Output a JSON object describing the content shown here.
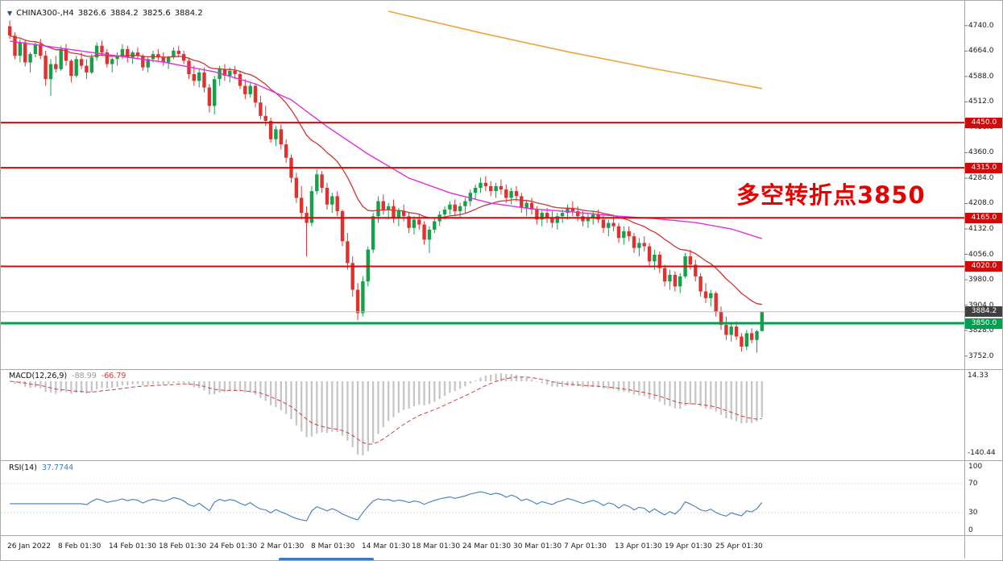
{
  "window": {
    "quote": {
      "arrow": "▼",
      "symbol": "CHINA300-,H4",
      "open": "3826.6",
      "high": "3884.2",
      "low": "3825.6",
      "close": "3884.2"
    },
    "annotation": "多空转折点3850"
  },
  "colors": {
    "up_candle": "#16a04a",
    "down_candle": "#e03131",
    "level_red": "#cf0a0a",
    "level_green": "#00a14e",
    "annotation_red": "#e80000",
    "ma_red": "#cf3434",
    "ma_magenta": "#df2fdf",
    "ma_orange": "#eea33c",
    "macd_histogram": "#c6c6c6",
    "macd_signal": "#d04040",
    "rsi_line": "#3f7cbf",
    "current_price_tag": "#404040",
    "scrollbar_blue": "#3f78c0"
  },
  "chart_data": {
    "type": "candlestick",
    "title": "CHINA300- H4 chart with MACD and RSI",
    "symbol": "CHINA300-",
    "timeframe": "H4",
    "x_labels": [
      "26 Jan 2022",
      "8 Feb 01:30",
      "14 Feb 01:30",
      "18 Feb 01:30",
      "24 Feb 01:30",
      "2 Mar 01:30",
      "8 Mar 01:30",
      "14 Mar 01:30",
      "18 Mar 01:30",
      "24 Mar 01:30",
      "30 Mar 01:30",
      "7 Apr 01:30",
      "13 Apr 01:30",
      "19 Apr 01:30",
      "25 Apr 01:30"
    ],
    "y_ticks": [
      "4740.0",
      "4664.0",
      "4588.0",
      "4512.0",
      "4436.0",
      "4360.0",
      "4284.0",
      "4208.0",
      "4132.0",
      "4056.0",
      "3980.0",
      "3904.0",
      "3828.0",
      "3752.0"
    ],
    "price_range": {
      "min": 3715,
      "max": 4795
    },
    "candle_colors": {
      "up": "#16a04a",
      "down": "#e03131"
    },
    "candles": [
      [
        4738,
        4755,
        4700,
        4710
      ],
      [
        4710,
        4720,
        4640,
        4650
      ],
      [
        4650,
        4700,
        4630,
        4690
      ],
      [
        4690,
        4695,
        4618,
        4630
      ],
      [
        4630,
        4660,
        4600,
        4655
      ],
      [
        4655,
        4690,
        4645,
        4685
      ],
      [
        4685,
        4700,
        4640,
        4650
      ],
      [
        4650,
        4665,
        4560,
        4580
      ],
      [
        4580,
        4640,
        4530,
        4625
      ],
      [
        4625,
        4650,
        4600,
        4610
      ],
      [
        4610,
        4680,
        4605,
        4670
      ],
      [
        4670,
        4685,
        4620,
        4635
      ],
      [
        4635,
        4640,
        4570,
        4590
      ],
      [
        4590,
        4650,
        4585,
        4640
      ],
      [
        4640,
        4660,
        4610,
        4620
      ],
      [
        4620,
        4640,
        4580,
        4600
      ],
      [
        4600,
        4655,
        4595,
        4645
      ],
      [
        4645,
        4690,
        4635,
        4680
      ],
      [
        4680,
        4695,
        4650,
        4660
      ],
      [
        4660,
        4670,
        4615,
        4625
      ],
      [
        4625,
        4645,
        4600,
        4640
      ],
      [
        4640,
        4660,
        4620,
        4650
      ],
      [
        4650,
        4685,
        4640,
        4670
      ],
      [
        4670,
        4680,
        4630,
        4645
      ],
      [
        4645,
        4665,
        4625,
        4660
      ],
      [
        4660,
        4675,
        4640,
        4650
      ],
      [
        4650,
        4655,
        4605,
        4615
      ],
      [
        4615,
        4645,
        4600,
        4640
      ],
      [
        4640,
        4665,
        4630,
        4655
      ],
      [
        4655,
        4670,
        4635,
        4645
      ],
      [
        4645,
        4660,
        4620,
        4630
      ],
      [
        4630,
        4650,
        4610,
        4645
      ],
      [
        4645,
        4675,
        4640,
        4665
      ],
      [
        4665,
        4680,
        4645,
        4655
      ],
      [
        4655,
        4665,
        4625,
        4635
      ],
      [
        4635,
        4645,
        4580,
        4595
      ],
      [
        4595,
        4620,
        4560,
        4575
      ],
      [
        4575,
        4610,
        4555,
        4600
      ],
      [
        4600,
        4615,
        4540,
        4555
      ],
      [
        4555,
        4565,
        4480,
        4500
      ],
      [
        4500,
        4590,
        4475,
        4580
      ],
      [
        4580,
        4620,
        4560,
        4610
      ],
      [
        4610,
        4625,
        4575,
        4590
      ],
      [
        4590,
        4615,
        4570,
        4605
      ],
      [
        4605,
        4620,
        4580,
        4595
      ],
      [
        4595,
        4605,
        4550,
        4560
      ],
      [
        4560,
        4580,
        4520,
        4535
      ],
      [
        4535,
        4570,
        4525,
        4560
      ],
      [
        4560,
        4565,
        4495,
        4510
      ],
      [
        4510,
        4530,
        4460,
        4470
      ],
      [
        4470,
        4500,
        4440,
        4455
      ],
      [
        4455,
        4465,
        4390,
        4400
      ],
      [
        4400,
        4440,
        4380,
        4430
      ],
      [
        4430,
        4445,
        4370,
        4385
      ],
      [
        4385,
        4400,
        4330,
        4345
      ],
      [
        4345,
        4355,
        4270,
        4285
      ],
      [
        4285,
        4300,
        4210,
        4225
      ],
      [
        4225,
        4260,
        4160,
        4180
      ],
      [
        4180,
        4200,
        4050,
        4150
      ],
      [
        4150,
        4260,
        4140,
        4245
      ],
      [
        4245,
        4310,
        4235,
        4295
      ],
      [
        4295,
        4305,
        4240,
        4255
      ],
      [
        4255,
        4270,
        4190,
        4205
      ],
      [
        4205,
        4240,
        4180,
        4230
      ],
      [
        4230,
        4245,
        4170,
        4185
      ],
      [
        4185,
        4190,
        4080,
        4095
      ],
      [
        4095,
        4120,
        4010,
        4030
      ],
      [
        4030,
        4050,
        3930,
        3950
      ],
      [
        3950,
        3970,
        3860,
        3880
      ],
      [
        3880,
        3990,
        3870,
        3975
      ],
      [
        3975,
        4080,
        3960,
        4070
      ],
      [
        4070,
        4180,
        4060,
        4170
      ],
      [
        4170,
        4230,
        4150,
        4215
      ],
      [
        4215,
        4235,
        4175,
        4190
      ],
      [
        4190,
        4210,
        4160,
        4200
      ],
      [
        4200,
        4220,
        4150,
        4165
      ],
      [
        4165,
        4195,
        4140,
        4185
      ],
      [
        4185,
        4205,
        4155,
        4170
      ],
      [
        4170,
        4180,
        4120,
        4135
      ],
      [
        4135,
        4170,
        4115,
        4160
      ],
      [
        4160,
        4175,
        4130,
        4145
      ],
      [
        4145,
        4155,
        4085,
        4100
      ],
      [
        4100,
        4140,
        4060,
        4130
      ],
      [
        4130,
        4165,
        4120,
        4155
      ],
      [
        4155,
        4185,
        4140,
        4175
      ],
      [
        4175,
        4200,
        4160,
        4190
      ],
      [
        4190,
        4215,
        4175,
        4205
      ],
      [
        4205,
        4220,
        4170,
        4185
      ],
      [
        4185,
        4210,
        4165,
        4200
      ],
      [
        4200,
        4225,
        4180,
        4215
      ],
      [
        4215,
        4250,
        4200,
        4240
      ],
      [
        4240,
        4265,
        4220,
        4255
      ],
      [
        4255,
        4285,
        4240,
        4270
      ],
      [
        4270,
        4290,
        4245,
        4260
      ],
      [
        4260,
        4275,
        4230,
        4245
      ],
      [
        4245,
        4270,
        4225,
        4260
      ],
      [
        4260,
        4280,
        4235,
        4250
      ],
      [
        4250,
        4265,
        4210,
        4225
      ],
      [
        4225,
        4255,
        4205,
        4245
      ],
      [
        4245,
        4260,
        4215,
        4230
      ],
      [
        4230,
        4240,
        4180,
        4195
      ],
      [
        4195,
        4220,
        4170,
        4210
      ],
      [
        4210,
        4225,
        4175,
        4190
      ],
      [
        4190,
        4200,
        4145,
        4160
      ],
      [
        4160,
        4190,
        4140,
        4180
      ],
      [
        4180,
        4195,
        4150,
        4165
      ],
      [
        4165,
        4185,
        4135,
        4150
      ],
      [
        4150,
        4180,
        4130,
        4170
      ],
      [
        4170,
        4190,
        4150,
        4180
      ],
      [
        4180,
        4205,
        4160,
        4195
      ],
      [
        4195,
        4215,
        4170,
        4185
      ],
      [
        4185,
        4200,
        4155,
        4170
      ],
      [
        4170,
        4185,
        4140,
        4155
      ],
      [
        4155,
        4180,
        4135,
        4165
      ],
      [
        4165,
        4185,
        4145,
        4175
      ],
      [
        4175,
        4190,
        4150,
        4160
      ],
      [
        4160,
        4175,
        4120,
        4135
      ],
      [
        4135,
        4160,
        4110,
        4150
      ],
      [
        4150,
        4170,
        4125,
        4140
      ],
      [
        4140,
        4150,
        4090,
        4105
      ],
      [
        4105,
        4140,
        4085,
        4125
      ],
      [
        4125,
        4140,
        4095,
        4110
      ],
      [
        4110,
        4120,
        4060,
        4075
      ],
      [
        4075,
        4105,
        4050,
        4090
      ],
      [
        4090,
        4110,
        4065,
        4080
      ],
      [
        4080,
        4090,
        4020,
        4035
      ],
      [
        4035,
        4070,
        4010,
        4055
      ],
      [
        4055,
        4065,
        4000,
        4015
      ],
      [
        4015,
        4025,
        3960,
        3975
      ],
      [
        3975,
        4010,
        3950,
        3995
      ],
      [
        3995,
        4005,
        3945,
        3960
      ],
      [
        3960,
        4000,
        3940,
        3990
      ],
      [
        3990,
        4060,
        3985,
        4050
      ],
      [
        4050,
        4070,
        4010,
        4025
      ],
      [
        4025,
        4040,
        3975,
        3990
      ],
      [
        3990,
        4000,
        3930,
        3945
      ],
      [
        3945,
        3970,
        3910,
        3925
      ],
      [
        3925,
        3950,
        3900,
        3940
      ],
      [
        3940,
        3945,
        3870,
        3885
      ],
      [
        3885,
        3900,
        3830,
        3845
      ],
      [
        3845,
        3870,
        3800,
        3815
      ],
      [
        3815,
        3850,
        3795,
        3840
      ],
      [
        3840,
        3855,
        3800,
        3810
      ],
      [
        3810,
        3820,
        3765,
        3780
      ],
      [
        3780,
        3830,
        3770,
        3820
      ],
      [
        3820,
        3835,
        3790,
        3800
      ],
      [
        3800,
        3830,
        3762,
        3826
      ],
      [
        3826.6,
        3884.2,
        3825.6,
        3884.2
      ]
    ],
    "levels": [
      {
        "price": 4450.0,
        "label": "4450.0",
        "color": "#cf0a0a",
        "width": 2
      },
      {
        "price": 4315.0,
        "label": "4315.0",
        "color": "#cf0a0a",
        "width": 2
      },
      {
        "price": 4165.0,
        "label": "4165.0",
        "color": "#cf0a0a",
        "width": 2
      },
      {
        "price": 4020.0,
        "label": "4020.0",
        "color": "#cf0a0a",
        "width": 2
      },
      {
        "price": 3850.0,
        "label": "3850.0",
        "color": "#00a14e",
        "width": 3
      }
    ],
    "current_price": {
      "value": 3884.2,
      "label": "3884.2",
      "line_color": "#bdbdbd",
      "tag_color": "#404040"
    },
    "ma_lines": {
      "red": {
        "color": "#cf3434",
        "type": "ema",
        "period": 21
      },
      "magenta": {
        "color": "#df2fdf",
        "anchors": [
          [
            0,
            4694
          ],
          [
            15,
            4662
          ],
          [
            30,
            4631
          ],
          [
            40,
            4602
          ],
          [
            48,
            4566
          ],
          [
            55,
            4518
          ],
          [
            62,
            4438
          ],
          [
            70,
            4356
          ],
          [
            78,
            4284
          ],
          [
            86,
            4240
          ],
          [
            94,
            4209
          ],
          [
            102,
            4192
          ],
          [
            110,
            4183
          ],
          [
            118,
            4171
          ],
          [
            126,
            4163
          ],
          [
            134,
            4151
          ],
          [
            141,
            4132
          ],
          [
            147,
            4103
          ]
        ]
      },
      "orange": {
        "color": "#eea33c",
        "anchors": [
          [
            74,
            4783
          ],
          [
            93,
            4715
          ],
          [
            109,
            4662
          ],
          [
            125,
            4614
          ],
          [
            136,
            4583
          ],
          [
            147,
            4552
          ]
        ]
      }
    },
    "macd": {
      "label": "MACD(12,26,9)",
      "main_value": "-88.99",
      "signal_value": "-66.79",
      "fast": 12,
      "slow": 26,
      "signal": 9,
      "scale_top_label": "14.33",
      "scale_bottom_label": "-140.44",
      "histogram_color": "#c6c6c6",
      "signal_color": "#d04040"
    },
    "rsi": {
      "label": "RSI(14)",
      "value_text": "37.7744",
      "period": 14,
      "scale_labels": [
        "100",
        "70",
        "30",
        "0"
      ],
      "level_values": [
        70,
        30
      ],
      "color": "#3f7cbf"
    }
  }
}
